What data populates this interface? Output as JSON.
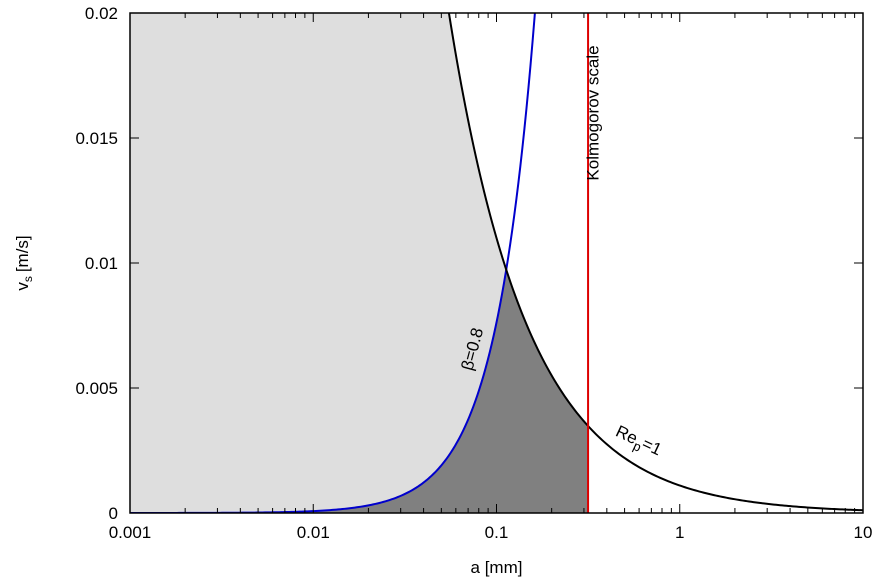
{
  "chart_data": {
    "type": "line",
    "xlabel": "a [mm]",
    "ylabel": "v",
    "ylabel_sub": "s",
    "ylabel_unit": "[m/s]",
    "xscale": "log",
    "xlim": [
      0.001,
      10
    ],
    "ylim": [
      0,
      0.02
    ],
    "x_ticks": [
      0.001,
      0.01,
      0.1,
      1,
      10
    ],
    "x_tick_labels": [
      "0.001",
      "0.01",
      "0.1",
      "1",
      "10"
    ],
    "y_ticks": [
      0,
      0.005,
      0.01,
      0.015,
      0.02
    ],
    "y_tick_labels": [
      "0",
      "0.005",
      "0.01",
      "0.015",
      "0.02"
    ],
    "grid": false,
    "series": [
      {
        "name": "Re_p=1",
        "color": "#000000",
        "x": [
          0.055,
          0.06,
          0.07,
          0.08,
          0.09,
          0.1,
          0.115,
          0.13,
          0.15,
          0.2,
          0.25,
          0.316,
          0.4,
          0.5,
          0.7,
          1,
          1.5,
          2,
          3,
          5,
          7,
          10
        ],
        "y": [
          0.02,
          0.01833,
          0.01571,
          0.01375,
          0.01222,
          0.011,
          0.00957,
          0.00846,
          0.00733,
          0.0055,
          0.0044,
          0.00348,
          0.00275,
          0.0022,
          0.00157,
          0.0011,
          0.00073,
          0.00055,
          0.00037,
          0.00022,
          0.00016,
          0.00011
        ]
      },
      {
        "name": "β=0.8",
        "color": "#0000cc",
        "x": [
          0.001,
          0.005,
          0.01,
          0.02,
          0.03,
          0.04,
          0.05,
          0.06,
          0.07,
          0.08,
          0.09,
          0.1,
          0.115,
          0.13,
          0.15,
          0.16
        ],
        "y": [
          8e-07,
          2e-05,
          8e-05,
          0.0003,
          0.00069,
          0.00122,
          0.0019,
          0.00274,
          0.00373,
          0.00488,
          0.00617,
          0.00762,
          0.01007,
          0.01288,
          0.01714,
          0.0195
        ]
      },
      {
        "name": "Kolmogorov scale",
        "color": "#dd0000",
        "x": [
          0.316,
          0.316
        ],
        "y": [
          0,
          0.02
        ]
      }
    ],
    "annotations": [
      {
        "text": "Kolmogorov scale",
        "x": 0.36,
        "y": 0.016,
        "rotation": -90
      },
      {
        "text": "β=0.8",
        "x": 0.079,
        "y": 0.0065,
        "rotation": -75
      },
      {
        "text": "Re",
        "sub": "p",
        "suffix": "=1",
        "x": 0.58,
        "y": 0.0027,
        "rotation": 25
      }
    ],
    "regions": [
      {
        "name": "light-region",
        "color": "#dedede"
      },
      {
        "name": "dark-region",
        "color": "#808080"
      }
    ]
  }
}
